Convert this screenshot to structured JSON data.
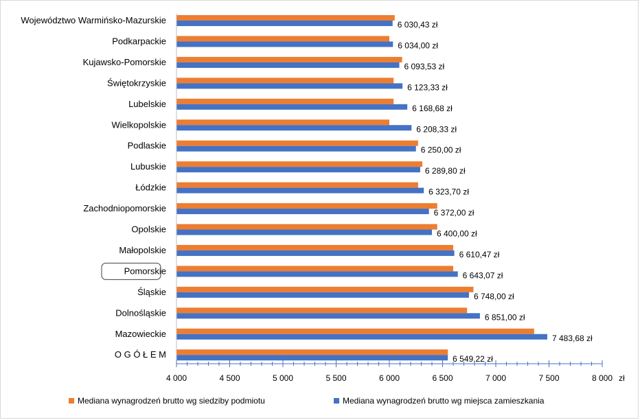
{
  "chart_data": {
    "type": "bar",
    "orientation": "horizontal",
    "categories": [
      "Województwo Warmińsko-Mazurskie",
      "Podkarpackie",
      "Kujawsko-Pomorskie",
      "Świętokrzyskie",
      "Lubelskie",
      "Wielkopolskie",
      "Podlaskie",
      "Lubuskie",
      "Łódzkie",
      "Zachodniopomorskie",
      "Opolskie",
      "Małopolskie",
      "Pomorskie",
      "Śląskie",
      "Dolnośląskie",
      "Mazowieckie",
      "O G Ó Ł E M"
    ],
    "highlighted_category": "Pomorskie",
    "series": [
      {
        "name": "Mediana wynagrodzeń brutto wg siedziby podmiotu",
        "color": "#ed7d31",
        "values": [
          6050,
          6000,
          6120,
          6040,
          6040,
          6000,
          6270,
          6310,
          6270,
          6450,
          6450,
          6600,
          6600,
          6790,
          6730,
          7360,
          6550
        ]
      },
      {
        "name": "Mediana wynagrodzeń brutto wg miejsca zamieszkania",
        "color": "#4472c4",
        "values": [
          6030.43,
          6034.0,
          6093.53,
          6123.33,
          6168.68,
          6208.33,
          6250.0,
          6289.8,
          6323.7,
          6372.0,
          6400.0,
          6610.47,
          6643.07,
          6748.0,
          6851.0,
          7483.68,
          6549.22
        ]
      }
    ],
    "value_labels": [
      "6 030,43 zł",
      "6 034,00 zł",
      "6 093,53 zł",
      "6 123,33 zł",
      "6 168,68 zł",
      "6 208,33 zł",
      "6 250,00 zł",
      "6 289,80 zł",
      "6 323,70 zł",
      "6 372,00 zł",
      "6 400,00 zł",
      "6 610,47 zł",
      "6 643,07 zł",
      "6 748,00 zł",
      "6 851,00 zł",
      "7 483,68 zł",
      "6 549,22 zł"
    ],
    "xlim": [
      4000,
      8000
    ],
    "x_ticks": [
      4000,
      4500,
      5000,
      5500,
      6000,
      6500,
      7000,
      7500,
      8000
    ],
    "x_tick_labels": [
      "4 000",
      "4 500",
      "5 000",
      "5 500",
      "6 000",
      "6 500",
      "7 000",
      "7 500",
      "8 000"
    ],
    "x_unit_label": "zł",
    "legend_position": "bottom",
    "grid": false
  }
}
